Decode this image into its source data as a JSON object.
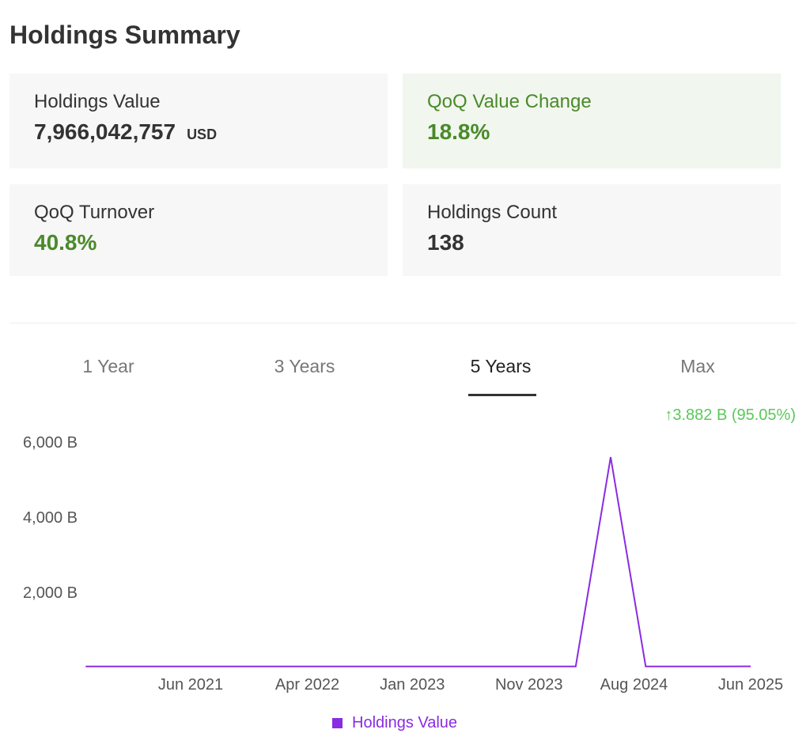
{
  "title": "Holdings Summary",
  "cards": [
    {
      "label": "Holdings Value",
      "value": "7,966,042,757",
      "unit": "USD"
    },
    {
      "label": "QoQ Value Change",
      "value": "18.8%"
    },
    {
      "label": "QoQ Turnover",
      "value": "40.8%"
    },
    {
      "label": "Holdings Count",
      "value": "138"
    }
  ],
  "tabs": [
    {
      "label": "1 Year",
      "active": false
    },
    {
      "label": "3 Years",
      "active": false
    },
    {
      "label": "5 Years",
      "active": true
    },
    {
      "label": "Max",
      "active": false
    }
  ],
  "change_text": "↑3.882 B (95.05%)",
  "colors": {
    "series": "#8a2be2",
    "positive": "#4a8a2a",
    "change": "#5ac85a"
  },
  "chart_data": {
    "type": "line",
    "title": "",
    "xlabel": "",
    "ylabel": "",
    "ylim": [
      0,
      6000
    ],
    "y_unit": "B",
    "grid": false,
    "legend_placement": "bottom",
    "yticks": [
      "2,000 B",
      "4,000 B",
      "6,000 B"
    ],
    "ytick_values": [
      2000,
      4000,
      6000
    ],
    "xticks": [
      "Jun 2021",
      "Apr 2022",
      "Jan 2023",
      "Nov 2023",
      "Aug 2024",
      "Jun 2025"
    ],
    "xtick_dates": [
      "2021-06",
      "2022-04",
      "2023-01",
      "2023-11",
      "2024-08",
      "2025-06"
    ],
    "series": [
      {
        "name": "Holdings Value",
        "x": [
          "2020-09",
          "2020-12",
          "2021-03",
          "2021-06",
          "2021-09",
          "2021-12",
          "2022-03",
          "2022-06",
          "2022-09",
          "2022-12",
          "2023-03",
          "2023-06",
          "2023-09",
          "2023-12",
          "2024-03",
          "2024-06",
          "2024-09",
          "2024-12",
          "2025-03",
          "2025-06"
        ],
        "values": [
          4,
          4,
          4,
          4,
          4,
          4,
          4,
          4,
          4,
          4,
          4,
          4,
          4,
          4,
          4,
          5580,
          4,
          4,
          4.08,
          7.97
        ]
      }
    ]
  }
}
